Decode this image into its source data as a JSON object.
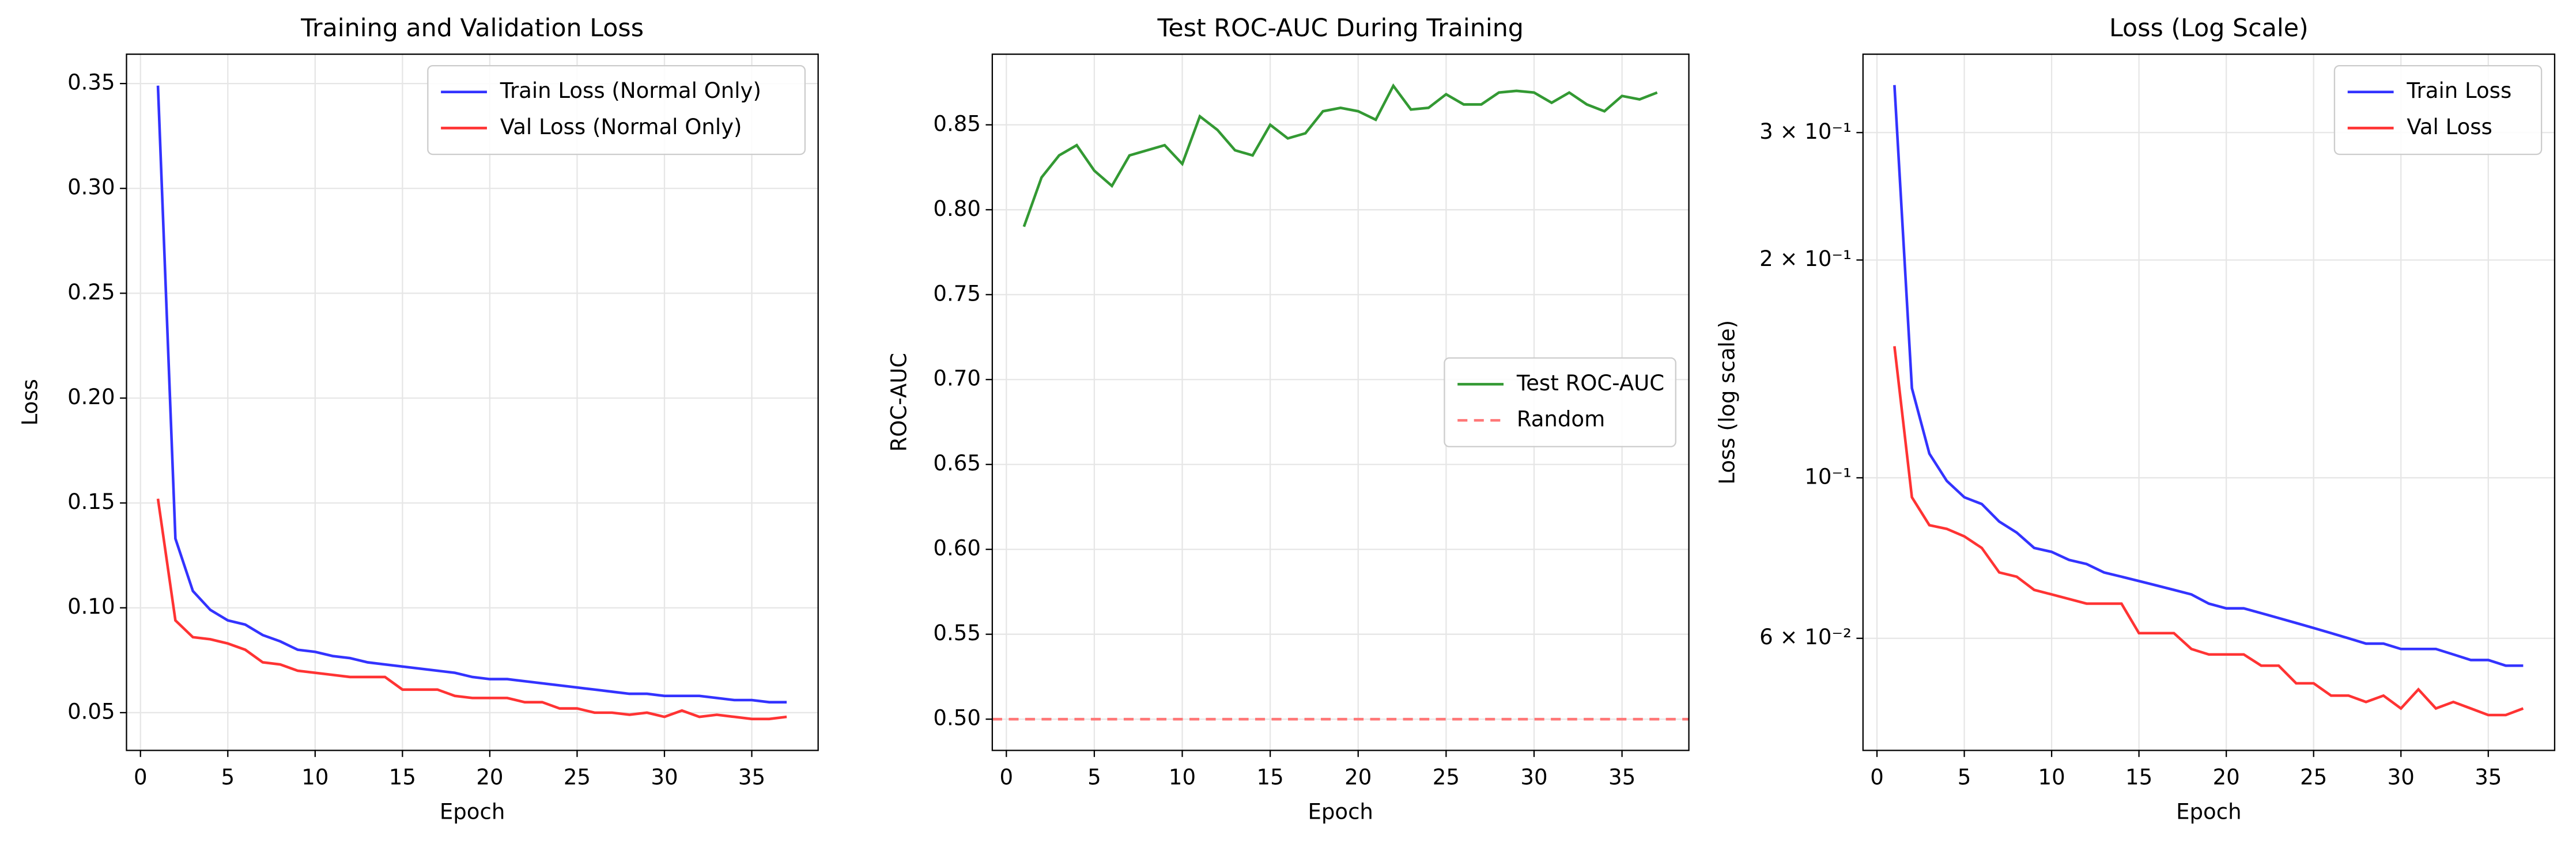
{
  "chart_data": [
    {
      "type": "line",
      "title": "Training and Validation Loss",
      "xlabel": "Epoch",
      "ylabel": "Loss",
      "x": [
        1,
        2,
        3,
        4,
        5,
        6,
        7,
        8,
        9,
        10,
        11,
        12,
        13,
        14,
        15,
        16,
        17,
        18,
        19,
        20,
        21,
        22,
        23,
        24,
        25,
        26,
        27,
        28,
        29,
        30,
        31,
        32,
        33,
        34,
        35,
        36,
        37
      ],
      "series": [
        {
          "name": "Train Loss (Normal Only)",
          "color": "#3333ff",
          "values": [
            0.349,
            0.133,
            0.108,
            0.099,
            0.094,
            0.092,
            0.087,
            0.084,
            0.08,
            0.079,
            0.077,
            0.076,
            0.074,
            0.073,
            0.072,
            0.071,
            0.07,
            0.069,
            0.067,
            0.066,
            0.066,
            0.065,
            0.064,
            0.063,
            0.062,
            0.061,
            0.06,
            0.059,
            0.059,
            0.058,
            0.058,
            0.058,
            0.057,
            0.056,
            0.056,
            0.055,
            0.055
          ]
        },
        {
          "name": "Val Loss (Normal Only)",
          "color": "#ff3333",
          "values": [
            0.152,
            0.094,
            0.086,
            0.085,
            0.083,
            0.08,
            0.074,
            0.073,
            0.07,
            0.069,
            0.068,
            0.067,
            0.067,
            0.067,
            0.061,
            0.061,
            0.061,
            0.058,
            0.057,
            0.057,
            0.057,
            0.055,
            0.055,
            0.052,
            0.052,
            0.05,
            0.05,
            0.049,
            0.05,
            0.048,
            0.051,
            0.048,
            0.049,
            0.048,
            0.047,
            0.047,
            0.048
          ]
        }
      ],
      "xlim": [
        -0.8,
        38.8
      ],
      "xticks": [
        0,
        5,
        10,
        15,
        20,
        25,
        30,
        35
      ],
      "ylim": [
        0.032,
        0.364
      ],
      "yticks": [
        {
          "value": 0.05,
          "label": "0.05"
        },
        {
          "value": 0.1,
          "label": "0.10"
        },
        {
          "value": 0.15,
          "label": "0.15"
        },
        {
          "value": 0.2,
          "label": "0.20"
        },
        {
          "value": 0.25,
          "label": "0.25"
        },
        {
          "value": 0.3,
          "label": "0.30"
        },
        {
          "value": 0.35,
          "label": "0.35"
        }
      ],
      "grid": true,
      "legend": "upper right"
    },
    {
      "type": "line",
      "title": "Test ROC-AUC During Training",
      "xlabel": "Epoch",
      "ylabel": "ROC-AUC",
      "x": [
        1,
        2,
        3,
        4,
        5,
        6,
        7,
        8,
        9,
        10,
        11,
        12,
        13,
        14,
        15,
        16,
        17,
        18,
        19,
        20,
        21,
        22,
        23,
        24,
        25,
        26,
        27,
        28,
        29,
        30,
        31,
        32,
        33,
        34,
        35,
        36,
        37
      ],
      "series": [
        {
          "name": "Test ROC-AUC",
          "color": "#339933",
          "values": [
            0.79,
            0.819,
            0.832,
            0.838,
            0.823,
            0.814,
            0.832,
            0.835,
            0.838,
            0.827,
            0.855,
            0.847,
            0.835,
            0.832,
            0.85,
            0.842,
            0.845,
            0.858,
            0.86,
            0.858,
            0.853,
            0.873,
            0.859,
            0.86,
            0.868,
            0.862,
            0.862,
            0.869,
            0.87,
            0.869,
            0.863,
            0.869,
            0.862,
            0.858,
            0.867,
            0.865,
            0.869
          ]
        }
      ],
      "reference": {
        "name": "Random",
        "value": 0.5,
        "color": "#ff7777",
        "linestyle": "dashed"
      },
      "xlim": [
        -0.8,
        38.8
      ],
      "xticks": [
        0,
        5,
        10,
        15,
        20,
        25,
        30,
        35
      ],
      "ylim": [
        0.4816,
        0.8916
      ],
      "yticks": [
        {
          "value": 0.5,
          "label": "0.50"
        },
        {
          "value": 0.55,
          "label": "0.55"
        },
        {
          "value": 0.6,
          "label": "0.60"
        },
        {
          "value": 0.65,
          "label": "0.65"
        },
        {
          "value": 0.7,
          "label": "0.70"
        },
        {
          "value": 0.75,
          "label": "0.75"
        },
        {
          "value": 0.8,
          "label": "0.80"
        },
        {
          "value": 0.85,
          "label": "0.85"
        }
      ],
      "grid": true,
      "legend": "center right"
    },
    {
      "type": "line",
      "title": "Loss (Log Scale)",
      "xlabel": "Epoch",
      "ylabel": "Loss (log scale)",
      "x": [
        1,
        2,
        3,
        4,
        5,
        6,
        7,
        8,
        9,
        10,
        11,
        12,
        13,
        14,
        15,
        16,
        17,
        18,
        19,
        20,
        21,
        22,
        23,
        24,
        25,
        26,
        27,
        28,
        29,
        30,
        31,
        32,
        33,
        34,
        35,
        36,
        37
      ],
      "series": [
        {
          "name": "Train Loss",
          "color": "#3333ff",
          "values": [
            0.349,
            0.133,
            0.108,
            0.099,
            0.094,
            0.092,
            0.087,
            0.084,
            0.08,
            0.079,
            0.077,
            0.076,
            0.074,
            0.073,
            0.072,
            0.071,
            0.07,
            0.069,
            0.067,
            0.066,
            0.066,
            0.065,
            0.064,
            0.063,
            0.062,
            0.061,
            0.06,
            0.059,
            0.059,
            0.058,
            0.058,
            0.058,
            0.057,
            0.056,
            0.056,
            0.055,
            0.055
          ]
        },
        {
          "name": "Val Loss",
          "color": "#ff3333",
          "values": [
            0.152,
            0.094,
            0.086,
            0.085,
            0.083,
            0.08,
            0.074,
            0.073,
            0.07,
            0.069,
            0.068,
            0.067,
            0.067,
            0.067,
            0.061,
            0.061,
            0.061,
            0.058,
            0.057,
            0.057,
            0.057,
            0.055,
            0.055,
            0.052,
            0.052,
            0.05,
            0.05,
            0.049,
            0.05,
            0.048,
            0.051,
            0.048,
            0.049,
            0.048,
            0.047,
            0.047,
            0.048
          ]
        }
      ],
      "xlim": [
        -0.8,
        38.8
      ],
      "xticks": [
        0,
        5,
        10,
        15,
        20,
        25,
        30,
        35
      ],
      "ylim": [
        0.042,
        0.385
      ],
      "yscale": "log",
      "yticks": [
        {
          "value": 0.06,
          "label": "6 × 10⁻²"
        },
        {
          "value": 0.1,
          "label": "10⁻¹"
        },
        {
          "value": 0.2,
          "label": "2 × 10⁻¹"
        },
        {
          "value": 0.3,
          "label": "3 × 10⁻¹"
        }
      ],
      "grid": true,
      "legend": "upper right"
    }
  ]
}
